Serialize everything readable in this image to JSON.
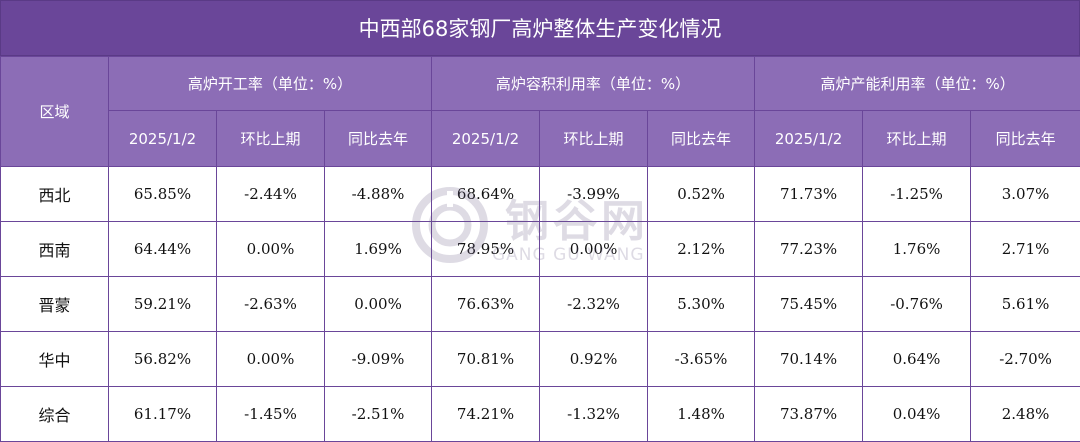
{
  "title": "中西部68家钢厂高炉整体生产变化情况",
  "header": {
    "region_label": "区域",
    "groups": [
      "高炉开工率（单位：%）",
      "高炉容积利用率（单位：%）",
      "高炉产能利用率（单位：%）"
    ],
    "subcolumns": [
      "2025/1/2",
      "环比上期",
      "同比去年"
    ]
  },
  "rows": [
    {
      "region": "西北",
      "cells": [
        {
          "v": "65.85%",
          "t": "zero"
        },
        {
          "v": "-2.44%",
          "t": "neg"
        },
        {
          "v": "-4.88%",
          "t": "neg"
        },
        {
          "v": "68.64%",
          "t": "zero"
        },
        {
          "v": "-3.99%",
          "t": "neg"
        },
        {
          "v": "0.52%",
          "t": "pos"
        },
        {
          "v": "71.73%",
          "t": "zero"
        },
        {
          "v": "-1.25%",
          "t": "neg"
        },
        {
          "v": "3.07%",
          "t": "pos"
        }
      ]
    },
    {
      "region": "西南",
      "cells": [
        {
          "v": "64.44%",
          "t": "zero"
        },
        {
          "v": "0.00%",
          "t": "zero"
        },
        {
          "v": "1.69%",
          "t": "pos"
        },
        {
          "v": "78.95%",
          "t": "zero"
        },
        {
          "v": "0.00%",
          "t": "zero"
        },
        {
          "v": "2.12%",
          "t": "pos"
        },
        {
          "v": "77.23%",
          "t": "zero"
        },
        {
          "v": "1.76%",
          "t": "pos"
        },
        {
          "v": "2.71%",
          "t": "pos"
        }
      ]
    },
    {
      "region": "晋蒙",
      "cells": [
        {
          "v": "59.21%",
          "t": "zero"
        },
        {
          "v": "-2.63%",
          "t": "neg"
        },
        {
          "v": "0.00%",
          "t": "zero"
        },
        {
          "v": "76.63%",
          "t": "zero"
        },
        {
          "v": "-2.32%",
          "t": "neg"
        },
        {
          "v": "5.30%",
          "t": "pos"
        },
        {
          "v": "75.45%",
          "t": "zero"
        },
        {
          "v": "-0.76%",
          "t": "neg"
        },
        {
          "v": "5.61%",
          "t": "pos"
        }
      ]
    },
    {
      "region": "华中",
      "cells": [
        {
          "v": "56.82%",
          "t": "zero"
        },
        {
          "v": "0.00%",
          "t": "zero"
        },
        {
          "v": "-9.09%",
          "t": "neg"
        },
        {
          "v": "70.81%",
          "t": "zero"
        },
        {
          "v": "0.92%",
          "t": "zero"
        },
        {
          "v": "-3.65%",
          "t": "neg"
        },
        {
          "v": "70.14%",
          "t": "zero"
        },
        {
          "v": "0.64%",
          "t": "pos"
        },
        {
          "v": "-2.70%",
          "t": "neg"
        }
      ]
    },
    {
      "region": "综合",
      "cells": [
        {
          "v": "61.17%",
          "t": "zero"
        },
        {
          "v": "-1.45%",
          "t": "neg"
        },
        {
          "v": "-2.51%",
          "t": "neg"
        },
        {
          "v": "74.21%",
          "t": "zero"
        },
        {
          "v": "-1.32%",
          "t": "neg"
        },
        {
          "v": "1.48%",
          "t": "pos"
        },
        {
          "v": "73.87%",
          "t": "zero"
        },
        {
          "v": "0.04%",
          "t": "pos"
        },
        {
          "v": "2.48%",
          "t": "pos"
        }
      ]
    }
  ],
  "watermark": {
    "cn": "钢谷网",
    "en": "GANG GU WANG"
  },
  "colors": {
    "header_dark": "#6a4699",
    "header_light": "#8c6db6",
    "negative": "#1aa33a",
    "positive": "#e01616"
  }
}
